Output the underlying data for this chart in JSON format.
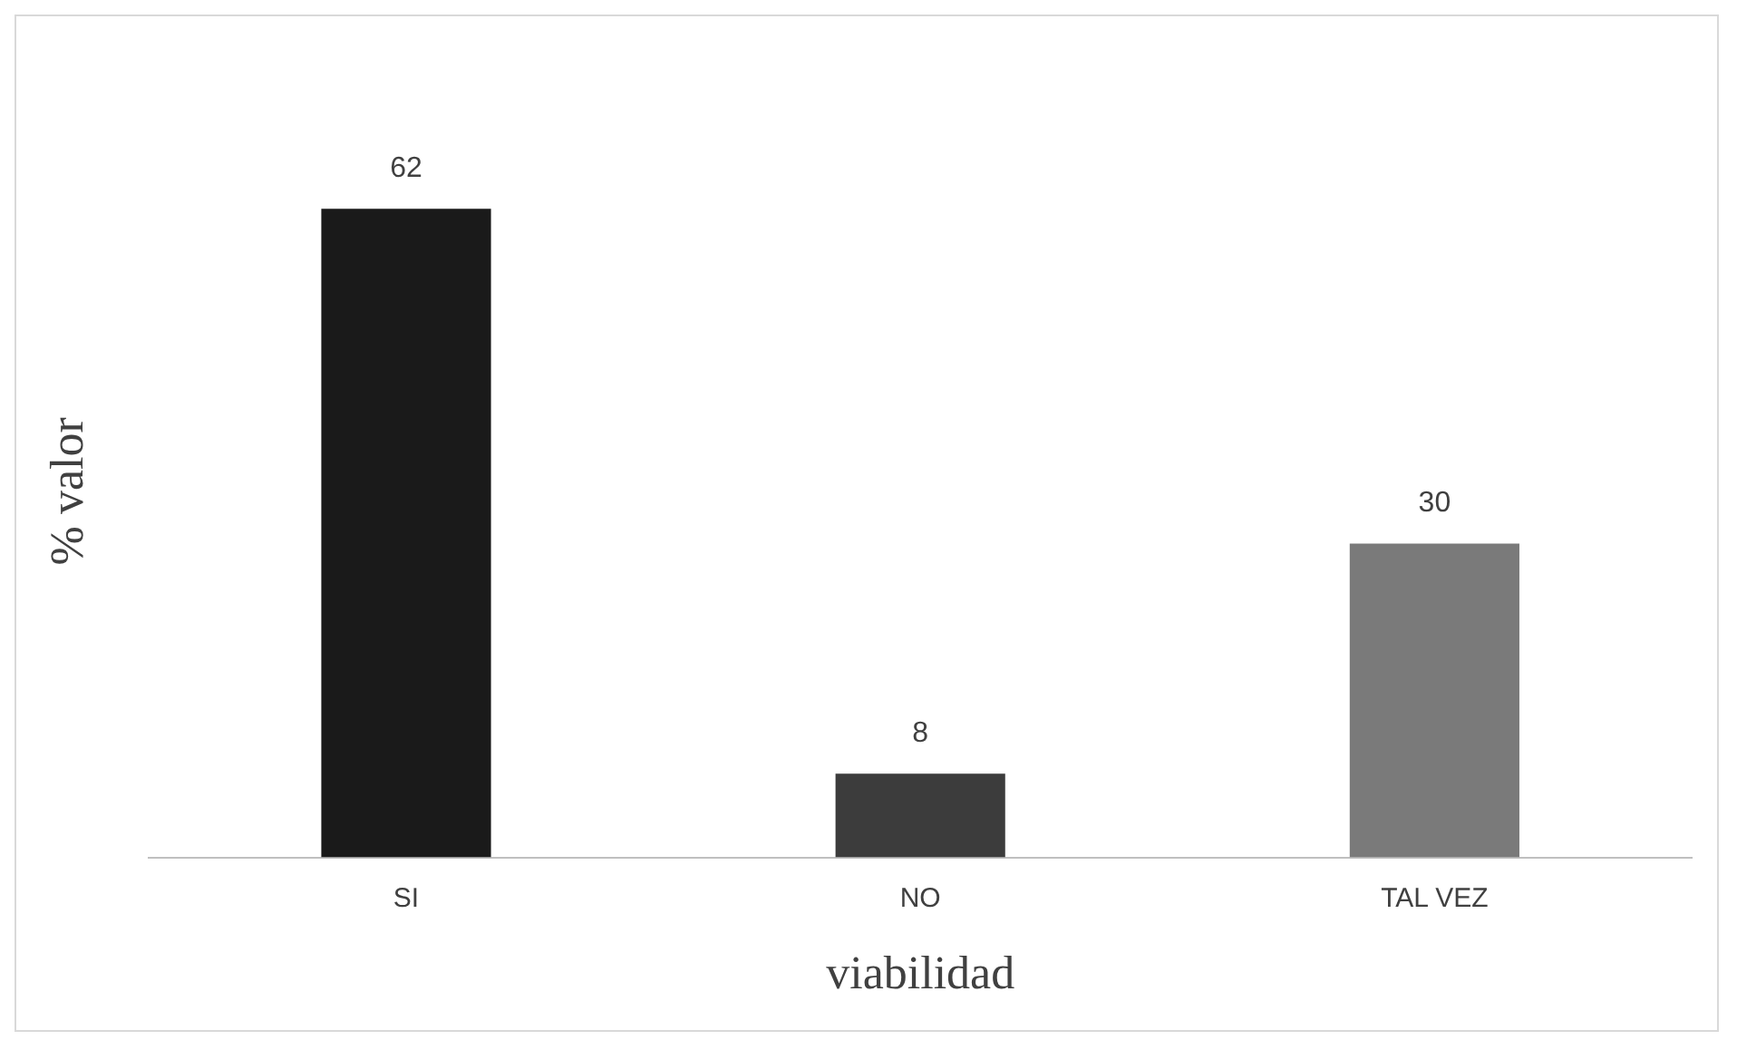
{
  "chart_data": {
    "type": "bar",
    "xlabel": "viabilidad",
    "ylabel": "% valor",
    "categories": [
      "SI",
      "NO",
      "TAL VEZ"
    ],
    "values": [
      62,
      8,
      30
    ],
    "colors": [
      "#1a1a1a",
      "#3c3c3c",
      "#7a7a7a"
    ],
    "data_labels": true,
    "grid": false,
    "legend": false
  }
}
